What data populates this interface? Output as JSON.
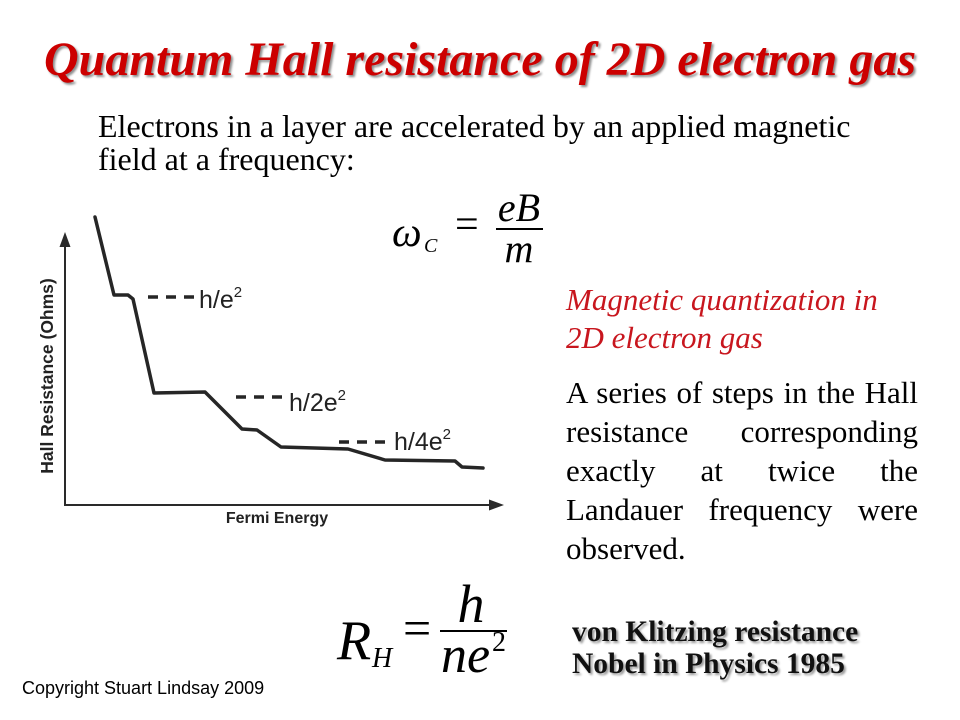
{
  "slide": {
    "title": "Quantum Hall resistance of 2D electron gas",
    "intro_lines": [
      "Electrons in a layer are accelerated by an applied magnetic",
      "field at a frequency:"
    ],
    "cyclotron_equation": {
      "symbol": "ω",
      "subscript": "C",
      "equals": "=",
      "numerator": "eB",
      "denominator": "m"
    },
    "side_heading_lines": [
      "Magnetic quantization in",
      "2D electron gas"
    ],
    "side_body_lines": [
      "A series of steps in the Hall",
      "resistance corresponding",
      "exactly at twice the",
      "Landauer frequency were",
      "observed."
    ],
    "hall_equation": {
      "symbol": "R",
      "subscript": "H",
      "equals": "=",
      "numerator": "h",
      "denominator": "ne",
      "exponent": "2"
    },
    "caption_lines": [
      "von Klitzing resistance",
      "Nobel in Physics 1985"
    ],
    "copyright": "Copyright Stuart Lindsay 2009"
  },
  "chart_data": {
    "type": "line",
    "xlabel": "Fermi Energy",
    "ylabel": "Hall Resistance (Ohms)",
    "grid": false,
    "annotations": [
      {
        "text": "h/e",
        "sup": "2"
      },
      {
        "text": "h/2e",
        "sup": "2"
      },
      {
        "text": "h/4e",
        "sup": "2"
      }
    ]
  },
  "colors": {
    "title": "#cc0000",
    "subheading": "#c8161e",
    "body": "#000000"
  }
}
